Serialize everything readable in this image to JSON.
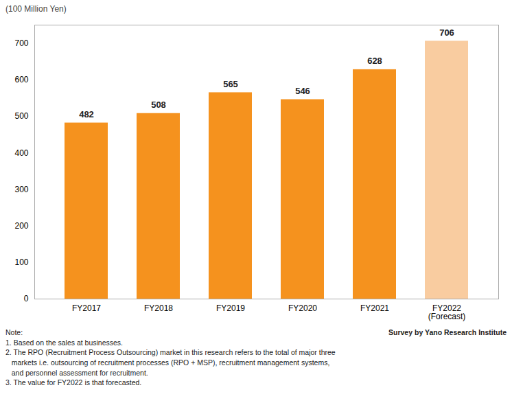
{
  "chart_data": {
    "type": "bar",
    "ylabel": "(100 Million Yen)",
    "categories": [
      "FY2017",
      "FY2018",
      "FY2019",
      "FY2020",
      "FY2021",
      "FY2022\n(Forecast)"
    ],
    "values": [
      482,
      508,
      565,
      546,
      628,
      706
    ],
    "colors": [
      "#F5921E",
      "#F5921E",
      "#F5921E",
      "#F5921E",
      "#F5921E",
      "#F9CCA0"
    ],
    "ylim": [
      0,
      750
    ],
    "yticks": [
      0,
      100,
      200,
      300,
      400,
      500,
      600,
      700
    ],
    "grid": false,
    "data_labels": true,
    "annotations": [
      "Note:\n1. Based on the sales at businesses.\n2. The RPO (Recruitment Process Outsourcing) market in this research refers to the total of major three\n   markets i.e. outsourcing of recruitment processes (RPO + MSP), recruitment management systems,\n   and personnel assessment for recruitment.\n3. The value for FY2022 is that forecasted.",
      "Survey by Yano Research Institute"
    ]
  }
}
